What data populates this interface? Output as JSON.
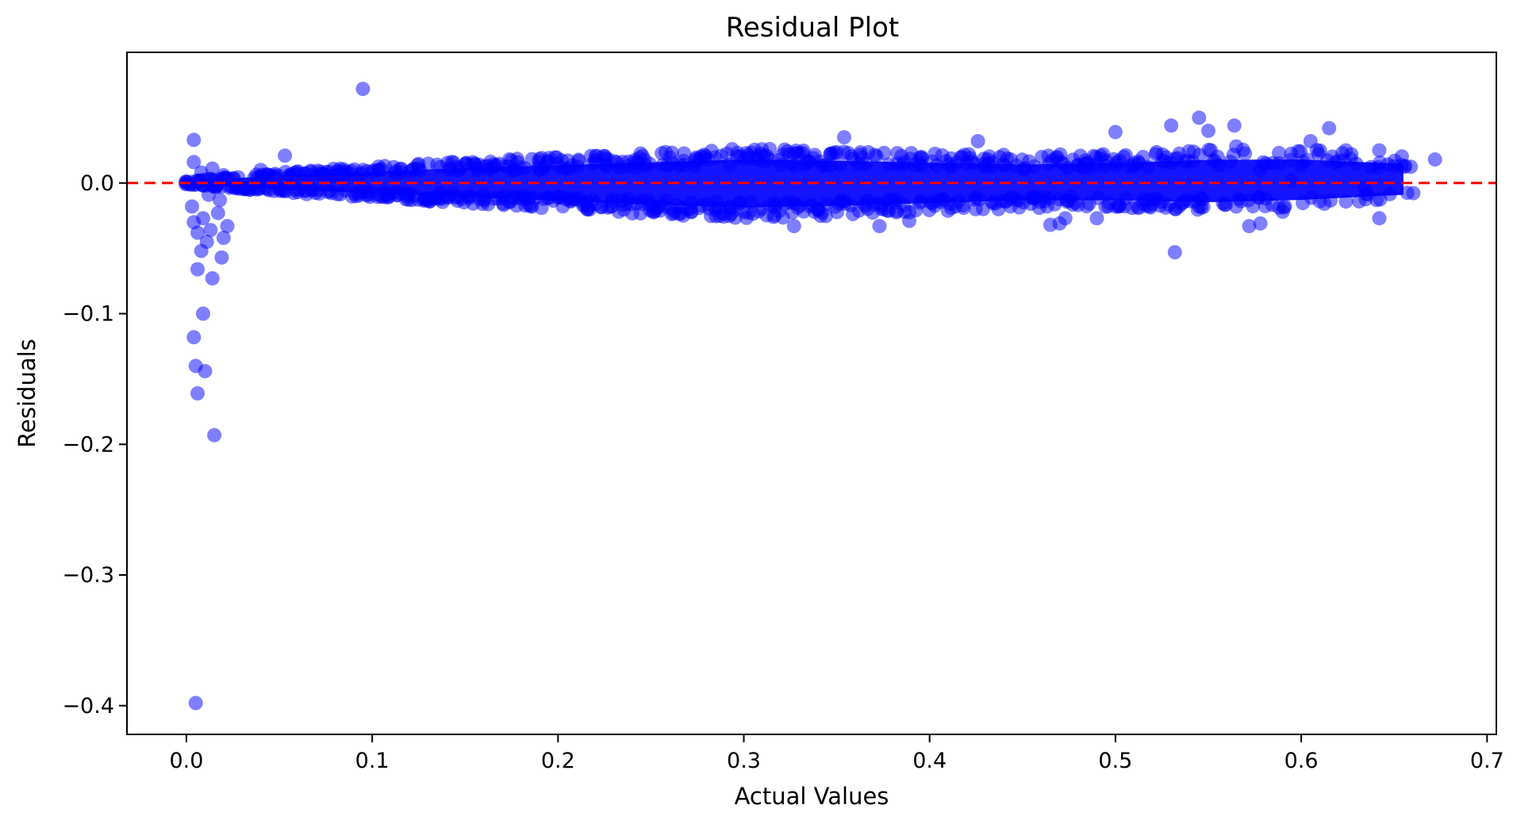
{
  "chart_data": {
    "type": "scatter",
    "title": "Residual Plot",
    "xlabel": "Actual Values",
    "ylabel": "Residuals",
    "xlim": [
      -0.032,
      0.705
    ],
    "ylim": [
      -0.422,
      0.1
    ],
    "xticks": [
      0.0,
      0.1,
      0.2,
      0.3,
      0.4,
      0.5,
      0.6,
      0.7
    ],
    "xtick_labels": [
      "0.0",
      "0.1",
      "0.2",
      "0.3",
      "0.4",
      "0.5",
      "0.6",
      "0.7"
    ],
    "yticks": [
      0.0,
      -0.1,
      -0.2,
      -0.3,
      -0.4
    ],
    "ytick_labels": [
      "0.0",
      "−0.1",
      "−0.2",
      "−0.3",
      "−0.4"
    ],
    "grid": false,
    "legend": "none",
    "reference_line": {
      "y": 0.0,
      "style": "dashed",
      "color": "#ff0000"
    },
    "point_color": "#0000ff",
    "point_alpha": 0.5,
    "points": [
      [
        0.095,
        0.072
      ],
      [
        0.005,
        -0.398
      ],
      [
        0.015,
        -0.193
      ],
      [
        0.006,
        -0.161
      ],
      [
        0.01,
        -0.144
      ],
      [
        0.005,
        -0.14
      ],
      [
        0.004,
        -0.118
      ],
      [
        0.009,
        -0.1
      ],
      [
        0.014,
        -0.073
      ],
      [
        0.006,
        -0.066
      ],
      [
        0.019,
        -0.057
      ],
      [
        0.008,
        -0.052
      ],
      [
        0.011,
        -0.045
      ],
      [
        0.02,
        -0.042
      ],
      [
        0.006,
        -0.038
      ],
      [
        0.013,
        -0.036
      ],
      [
        0.022,
        -0.033
      ],
      [
        0.004,
        -0.03
      ],
      [
        0.009,
        -0.027
      ],
      [
        0.017,
        -0.023
      ],
      [
        0.003,
        -0.018
      ],
      [
        0.018,
        -0.013
      ],
      [
        0.012,
        -0.009
      ],
      [
        0.004,
        0.033
      ],
      [
        0.004,
        0.016
      ],
      [
        0.008,
        0.008
      ],
      [
        0.014,
        0.011
      ],
      [
        0.02,
        0.006
      ],
      [
        0.053,
        0.021
      ],
      [
        0.04,
        0.01
      ],
      [
        0.545,
        0.05
      ],
      [
        0.53,
        0.044
      ],
      [
        0.55,
        0.04
      ],
      [
        0.564,
        0.044
      ],
      [
        0.615,
        0.042
      ],
      [
        0.5,
        0.039
      ],
      [
        0.426,
        0.032
      ],
      [
        0.354,
        0.035
      ],
      [
        0.605,
        0.032
      ],
      [
        0.624,
        0.025
      ],
      [
        0.642,
        0.025
      ],
      [
        0.672,
        0.018
      ],
      [
        0.656,
        0.013
      ],
      [
        0.588,
        0.023
      ],
      [
        0.6,
        0.013
      ],
      [
        0.565,
        0.028
      ],
      [
        0.555,
        0.02
      ],
      [
        0.578,
        0.01
      ],
      [
        0.595,
        0.002
      ],
      [
        0.634,
        -0.003
      ],
      [
        0.61,
        -0.014
      ],
      [
        0.642,
        -0.027
      ],
      [
        0.532,
        -0.053
      ],
      [
        0.572,
        -0.033
      ],
      [
        0.578,
        -0.031
      ],
      [
        0.59,
        -0.022
      ],
      [
        0.565,
        -0.018
      ],
      [
        0.373,
        -0.033
      ],
      [
        0.327,
        -0.033
      ],
      [
        0.389,
        -0.029
      ],
      [
        0.465,
        -0.032
      ],
      [
        0.47,
        -0.031
      ],
      [
        0.473,
        -0.027
      ],
      [
        0.49,
        -0.027
      ],
      [
        0.437,
        -0.02
      ],
      [
        0.52,
        -0.016
      ],
      [
        0.459,
        -0.019
      ]
    ],
    "trend_band": [
      [
        0.0,
        0.0,
        0.001,
        -0.001
      ],
      [
        0.025,
        0.0,
        0.005,
        -0.004
      ],
      [
        0.05,
        0.0,
        0.008,
        -0.007
      ],
      [
        0.1,
        0.0,
        0.012,
        -0.011
      ],
      [
        0.15,
        0.0,
        0.016,
        -0.015
      ],
      [
        0.2,
        0.0,
        0.019,
        -0.019
      ],
      [
        0.25,
        0.0,
        0.022,
        -0.023
      ],
      [
        0.3,
        0.0,
        0.025,
        -0.026
      ],
      [
        0.35,
        -0.001,
        0.024,
        -0.024
      ],
      [
        0.4,
        -0.001,
        0.022,
        -0.021
      ],
      [
        0.45,
        -0.001,
        0.02,
        -0.018
      ],
      [
        0.5,
        -0.001,
        0.022,
        -0.018
      ],
      [
        0.55,
        -0.001,
        0.025,
        -0.02
      ],
      [
        0.6,
        0.0,
        0.025,
        -0.018
      ],
      [
        0.66,
        0.0,
        0.02,
        -0.012
      ]
    ]
  }
}
